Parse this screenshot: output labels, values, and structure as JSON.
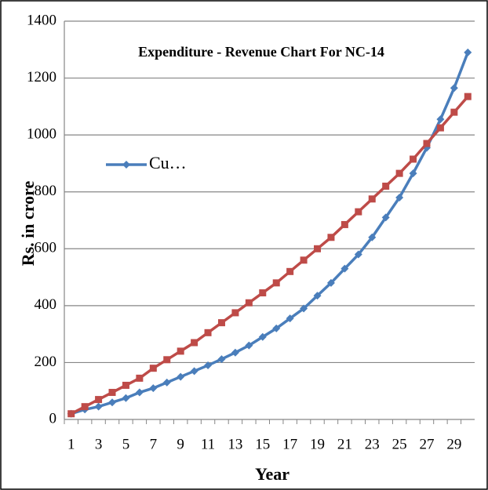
{
  "chart_data": {
    "type": "line",
    "title": "Expenditure - Revenue Chart For NC-14",
    "x_label": "Year",
    "y_label": "Rs. in crore",
    "categories": [
      1,
      null,
      3,
      null,
      5,
      null,
      7,
      null,
      9,
      null,
      11,
      null,
      13,
      null,
      15,
      null,
      17,
      null,
      19,
      null,
      21,
      null,
      23,
      null,
      25,
      null,
      27,
      null,
      29,
      null
    ],
    "series": [
      {
        "name": "Cu…",
        "color": "#4a7ebb",
        "marker": "diamond",
        "values": [
          20,
          35,
          45,
          60,
          75,
          95,
          110,
          130,
          150,
          170,
          190,
          212,
          235,
          260,
          290,
          320,
          355,
          390,
          435,
          480,
          530,
          580,
          640,
          710,
          780,
          865,
          955,
          1055,
          1165,
          1290
        ]
      },
      {
        "color": "#be4b48",
        "marker": "square",
        "values": [
          20,
          45,
          70,
          95,
          120,
          145,
          180,
          210,
          240,
          270,
          305,
          340,
          375,
          410,
          445,
          480,
          520,
          560,
          600,
          640,
          685,
          730,
          775,
          820,
          865,
          915,
          970,
          1025,
          1080,
          1135
        ]
      }
    ],
    "ylim": [
      0,
      1400
    ],
    "yticks": [
      0,
      200,
      400,
      600,
      800,
      1000,
      1200,
      1400
    ],
    "grid": true,
    "legend": "left"
  }
}
